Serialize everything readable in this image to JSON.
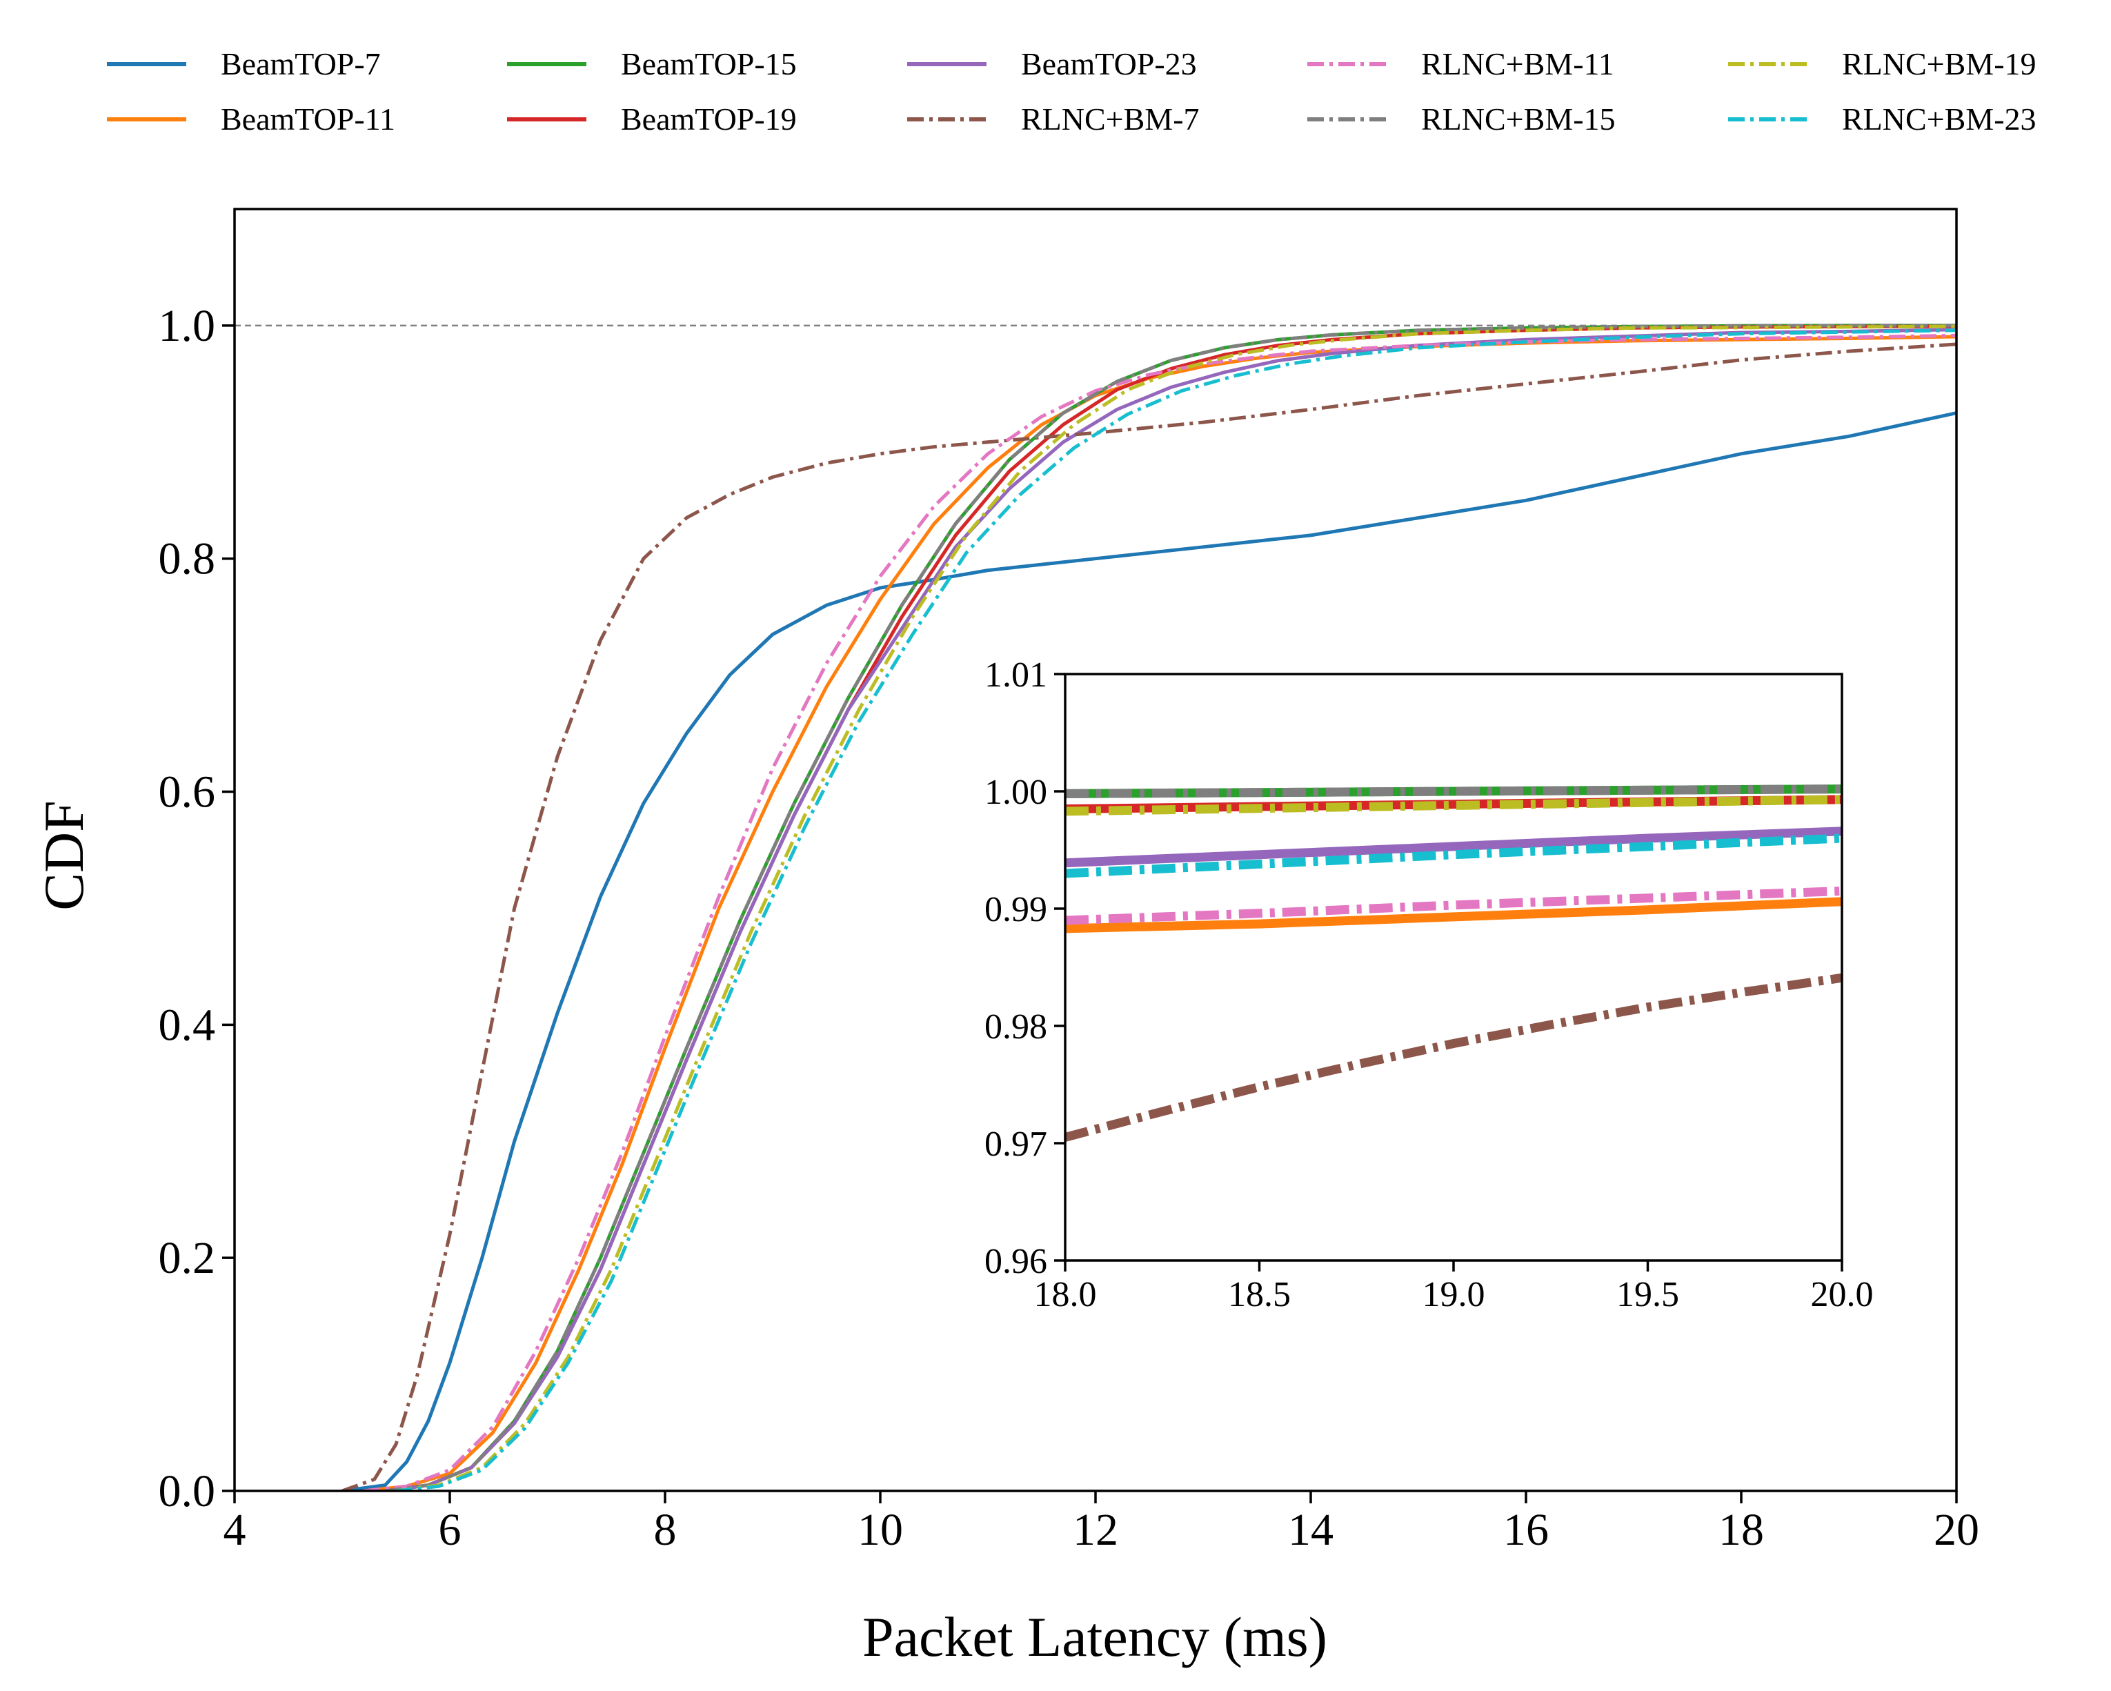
{
  "chart_data": [
    {
      "type": "line",
      "panel": "main",
      "xlabel": "Packet Latency (ms)",
      "ylabel": "CDF",
      "xlim": [
        4,
        20
      ],
      "ylim": [
        0,
        1.1
      ],
      "xticks": [
        4,
        6,
        8,
        10,
        12,
        14,
        16,
        18,
        20
      ],
      "xtick_labels": [
        "4",
        "6",
        "8",
        "10",
        "12",
        "14",
        "16",
        "18",
        "20"
      ],
      "yticks": [
        0,
        0.2,
        0.4,
        0.6,
        0.8,
        1.0
      ],
      "ytick_labels": [
        "0.0",
        "0.2",
        "0.4",
        "0.6",
        "0.8",
        "1.0"
      ],
      "reference_line": {
        "y": 1.0,
        "style": "dashed",
        "color": "#808080"
      },
      "grid": false,
      "legend": {
        "placement": "top, outside plot",
        "columns": 5
      },
      "series": [
        {
          "name": "BeamTOP-7",
          "color": "#1f77b4",
          "style": "solid",
          "x": [
            5.0,
            5.4,
            5.6,
            5.8,
            6.0,
            6.3,
            6.6,
            7.0,
            7.4,
            7.8,
            8.2,
            8.6,
            9.0,
            9.5,
            10.0,
            10.5,
            11.0,
            12.0,
            13.0,
            14.0,
            15.0,
            16.0,
            17.0,
            18.0,
            19.0,
            20.0
          ],
          "y": [
            0.0,
            0.005,
            0.025,
            0.06,
            0.11,
            0.2,
            0.3,
            0.41,
            0.51,
            0.59,
            0.65,
            0.7,
            0.735,
            0.76,
            0.775,
            0.782,
            0.79,
            0.8,
            0.81,
            0.82,
            0.835,
            0.85,
            0.87,
            0.89,
            0.905,
            0.925
          ]
        },
        {
          "name": "BeamTOP-11",
          "color": "#ff7f0e",
          "style": "solid",
          "x": [
            5.2,
            5.6,
            6.0,
            6.4,
            6.8,
            7.2,
            7.6,
            8.0,
            8.5,
            9.0,
            9.5,
            10.0,
            10.5,
            11.0,
            11.5,
            12.0,
            12.5,
            13.0,
            13.5,
            14.0,
            15.0,
            16.0,
            17.0,
            18.0,
            19.0,
            20.0
          ],
          "y": [
            0.0,
            0.004,
            0.015,
            0.05,
            0.11,
            0.19,
            0.28,
            0.38,
            0.5,
            0.6,
            0.69,
            0.765,
            0.83,
            0.878,
            0.915,
            0.94,
            0.955,
            0.965,
            0.972,
            0.977,
            0.982,
            0.985,
            0.987,
            0.988,
            0.989,
            0.9905
          ]
        },
        {
          "name": "BeamTOP-15",
          "color": "#2ca02c",
          "style": "solid",
          "x": [
            5.4,
            5.8,
            6.2,
            6.6,
            7.0,
            7.4,
            7.8,
            8.2,
            8.7,
            9.2,
            9.7,
            10.2,
            10.7,
            11.2,
            11.7,
            12.2,
            12.7,
            13.2,
            13.7,
            14.2,
            15.0,
            16.0,
            17.0,
            18.0,
            19.0,
            20.0
          ],
          "y": [
            0.0,
            0.005,
            0.02,
            0.06,
            0.12,
            0.2,
            0.29,
            0.38,
            0.49,
            0.59,
            0.68,
            0.76,
            0.83,
            0.885,
            0.925,
            0.952,
            0.97,
            0.981,
            0.988,
            0.992,
            0.996,
            0.998,
            0.9992,
            0.9998,
            1.0,
            1.0
          ]
        },
        {
          "name": "BeamTOP-19",
          "color": "#d62728",
          "style": "solid",
          "x": [
            5.4,
            5.8,
            6.2,
            6.6,
            7.0,
            7.4,
            7.8,
            8.2,
            8.7,
            9.2,
            9.7,
            10.2,
            10.7,
            11.2,
            11.7,
            12.2,
            12.7,
            13.2,
            13.7,
            14.2,
            15.0,
            16.0,
            17.0,
            18.0,
            19.0,
            20.0
          ],
          "y": [
            0.0,
            0.005,
            0.02,
            0.058,
            0.115,
            0.19,
            0.28,
            0.37,
            0.48,
            0.58,
            0.67,
            0.75,
            0.82,
            0.875,
            0.915,
            0.945,
            0.963,
            0.975,
            0.983,
            0.988,
            0.993,
            0.996,
            0.998,
            0.9988,
            0.9992,
            0.9994
          ]
        },
        {
          "name": "BeamTOP-23",
          "color": "#9467bd",
          "style": "solid",
          "x": [
            5.4,
            5.8,
            6.2,
            6.6,
            7.0,
            7.4,
            7.8,
            8.2,
            8.7,
            9.2,
            9.7,
            10.2,
            10.7,
            11.2,
            11.7,
            12.2,
            12.7,
            13.2,
            13.7,
            14.2,
            15.0,
            16.0,
            17.0,
            18.0,
            19.0,
            20.0
          ],
          "y": [
            0.0,
            0.005,
            0.02,
            0.058,
            0.115,
            0.19,
            0.28,
            0.37,
            0.48,
            0.58,
            0.67,
            0.74,
            0.81,
            0.86,
            0.9,
            0.928,
            0.947,
            0.96,
            0.97,
            0.976,
            0.983,
            0.988,
            0.991,
            0.994,
            0.995,
            0.9966
          ]
        },
        {
          "name": "RLNC+BM-7",
          "color": "#8c564b",
          "style": "dashdot",
          "x": [
            5.0,
            5.3,
            5.5,
            5.7,
            6.0,
            6.3,
            6.6,
            7.0,
            7.4,
            7.8,
            8.2,
            8.6,
            9.0,
            9.5,
            10.0,
            10.5,
            11.0,
            11.5,
            12.0,
            13.0,
            14.0,
            15.0,
            16.0,
            17.0,
            18.0,
            19.0,
            20.0
          ],
          "y": [
            0.0,
            0.01,
            0.04,
            0.1,
            0.22,
            0.36,
            0.5,
            0.63,
            0.73,
            0.8,
            0.835,
            0.855,
            0.87,
            0.882,
            0.89,
            0.896,
            0.9,
            0.904,
            0.908,
            0.917,
            0.928,
            0.94,
            0.95,
            0.96,
            0.9705,
            0.978,
            0.984
          ]
        },
        {
          "name": "RLNC+BM-11",
          "color": "#e377c2",
          "style": "dashdot",
          "x": [
            5.2,
            5.6,
            6.0,
            6.4,
            6.8,
            7.2,
            7.6,
            8.0,
            8.5,
            9.0,
            9.5,
            10.0,
            10.5,
            11.0,
            11.5,
            12.0,
            12.5,
            13.0,
            13.5,
            14.0,
            15.0,
            16.0,
            17.0,
            18.0,
            19.0,
            20.0
          ],
          "y": [
            0.0,
            0.004,
            0.018,
            0.055,
            0.12,
            0.2,
            0.29,
            0.39,
            0.51,
            0.62,
            0.71,
            0.785,
            0.845,
            0.89,
            0.922,
            0.944,
            0.958,
            0.967,
            0.973,
            0.978,
            0.983,
            0.986,
            0.988,
            0.989,
            0.99,
            0.9915
          ]
        },
        {
          "name": "RLNC+BM-15",
          "color": "#7f7f7f",
          "style": "dashdot",
          "x": [
            5.4,
            5.8,
            6.2,
            6.6,
            7.0,
            7.4,
            7.8,
            8.2,
            8.7,
            9.2,
            9.7,
            10.2,
            10.7,
            11.2,
            11.7,
            12.2,
            12.7,
            13.2,
            13.7,
            14.2,
            15.0,
            16.0,
            17.0,
            18.0,
            19.0,
            20.0
          ],
          "y": [
            0.0,
            0.005,
            0.02,
            0.06,
            0.12,
            0.2,
            0.29,
            0.38,
            0.49,
            0.59,
            0.68,
            0.76,
            0.83,
            0.885,
            0.925,
            0.952,
            0.97,
            0.981,
            0.988,
            0.992,
            0.996,
            0.998,
            0.9992,
            0.9998,
            1.0,
            1.0
          ]
        },
        {
          "name": "RLNC+BM-19",
          "color": "#bcbd22",
          "style": "dashdot",
          "x": [
            5.5,
            5.9,
            6.3,
            6.7,
            7.1,
            7.5,
            7.9,
            8.3,
            8.8,
            9.3,
            9.8,
            10.3,
            10.8,
            11.3,
            11.8,
            12.3,
            12.8,
            13.3,
            13.8,
            14.3,
            15.0,
            16.0,
            17.0,
            18.0,
            19.0,
            20.0
          ],
          "y": [
            0.0,
            0.005,
            0.02,
            0.058,
            0.115,
            0.19,
            0.28,
            0.37,
            0.48,
            0.58,
            0.67,
            0.75,
            0.82,
            0.875,
            0.915,
            0.945,
            0.963,
            0.975,
            0.983,
            0.988,
            0.993,
            0.996,
            0.998,
            0.9983,
            0.9988,
            0.9993
          ]
        },
        {
          "name": "RLNC+BM-23",
          "color": "#17becf",
          "style": "dashdot",
          "x": [
            5.5,
            5.9,
            6.3,
            6.7,
            7.1,
            7.5,
            7.9,
            8.3,
            8.8,
            9.3,
            9.8,
            10.3,
            10.8,
            11.3,
            11.8,
            12.3,
            12.8,
            13.3,
            13.8,
            14.3,
            15.0,
            16.0,
            17.0,
            18.0,
            19.0,
            20.0
          ],
          "y": [
            0.0,
            0.004,
            0.018,
            0.054,
            0.11,
            0.18,
            0.27,
            0.36,
            0.47,
            0.57,
            0.66,
            0.735,
            0.805,
            0.855,
            0.895,
            0.924,
            0.944,
            0.957,
            0.967,
            0.974,
            0.981,
            0.986,
            0.99,
            0.993,
            0.9945,
            0.996
          ]
        }
      ]
    },
    {
      "type": "line",
      "panel": "inset",
      "xlim": [
        18.0,
        20.0
      ],
      "ylim": [
        0.96,
        1.01
      ],
      "xticks": [
        18.0,
        18.5,
        19.0,
        19.5,
        20.0
      ],
      "xtick_labels": [
        "18.0",
        "18.5",
        "19.0",
        "19.5",
        "20.0"
      ],
      "yticks": [
        0.96,
        0.97,
        0.98,
        0.99,
        1.0,
        1.01
      ],
      "ytick_labels": [
        "0.96",
        "0.97",
        "0.98",
        "0.99",
        "1.00",
        "1.01"
      ],
      "grid": false,
      "series": [
        {
          "ref": "BeamTOP-11",
          "color": "#ff7f0e",
          "style": "solid",
          "x": [
            18.0,
            18.5,
            19.0,
            19.5,
            20.0
          ],
          "y": [
            0.9883,
            0.9887,
            0.9893,
            0.9899,
            0.9906
          ]
        },
        {
          "ref": "RLNC+BM-11",
          "color": "#e377c2",
          "style": "dashdot",
          "x": [
            18.0,
            18.5,
            19.0,
            19.5,
            20.0
          ],
          "y": [
            0.989,
            0.9896,
            0.9903,
            0.9909,
            0.9915
          ]
        },
        {
          "ref": "BeamTOP-23",
          "color": "#9467bd",
          "style": "solid",
          "x": [
            18.0,
            18.5,
            19.0,
            19.5,
            20.0
          ],
          "y": [
            0.9939,
            0.9946,
            0.9953,
            0.996,
            0.9966
          ]
        },
        {
          "ref": "RLNC+BM-23",
          "color": "#17becf",
          "style": "dashdot",
          "x": [
            18.0,
            18.5,
            19.0,
            19.5,
            20.0
          ],
          "y": [
            0.993,
            0.9938,
            0.9946,
            0.9953,
            0.996
          ]
        },
        {
          "ref": "RLNC+BM-7",
          "color": "#8c564b",
          "style": "dashdot",
          "x": [
            18.0,
            18.25,
            18.5,
            18.75,
            19.0,
            19.25,
            19.5,
            19.75,
            20.0
          ],
          "y": [
            0.9705,
            0.9727,
            0.9748,
            0.9767,
            0.9785,
            0.9801,
            0.9816,
            0.9829,
            0.9841
          ]
        },
        {
          "ref": "BeamTOP-15",
          "color": "#2ca02c",
          "style": "solid",
          "x": [
            18.0,
            19.0,
            20.0
          ],
          "y": [
            0.9998,
            1.0,
            1.0002
          ]
        },
        {
          "ref": "RLNC+BM-15",
          "color": "#7f7f7f",
          "style": "dashdot",
          "x": [
            18.0,
            19.0,
            20.0
          ],
          "y": [
            0.9998,
            1.0,
            1.0002
          ]
        },
        {
          "ref": "BeamTOP-19",
          "color": "#d62728",
          "style": "solid",
          "x": [
            18.0,
            19.0,
            20.0
          ],
          "y": [
            0.9985,
            0.9989,
            0.9993
          ]
        },
        {
          "ref": "RLNC+BM-19",
          "color": "#bcbd22",
          "style": "dashdot",
          "x": [
            18.0,
            19.0,
            20.0
          ],
          "y": [
            0.9983,
            0.9988,
            0.9993
          ]
        }
      ]
    }
  ]
}
